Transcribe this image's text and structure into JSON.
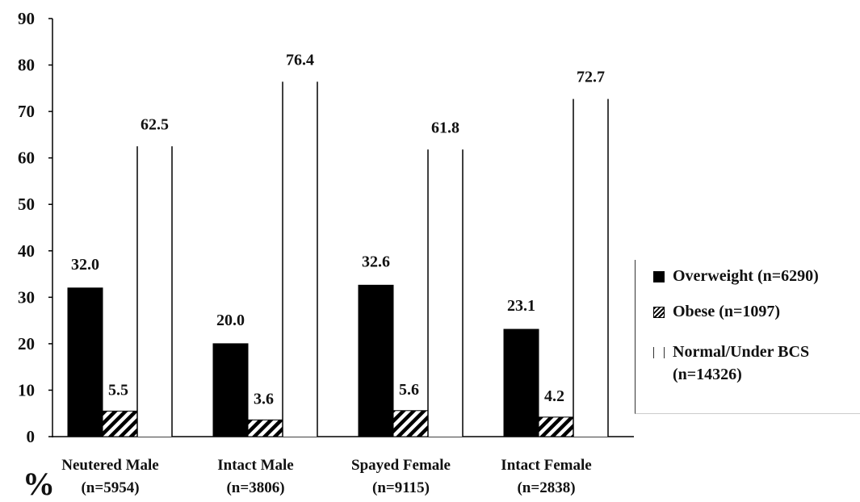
{
  "chart_data": {
    "type": "bar",
    "ylabel": "%",
    "ylim": [
      0,
      90
    ],
    "yticks": [
      0,
      10,
      20,
      30,
      40,
      50,
      60,
      70,
      80,
      90
    ],
    "categories": [
      [
        "Neutered Male",
        "(n=5954)"
      ],
      [
        "Intact Male",
        "(n=3806)"
      ],
      [
        "Spayed Female",
        "(n=9115)"
      ],
      [
        "Intact Female",
        "(n=2838)"
      ]
    ],
    "series": [
      {
        "name": "Overweight (n=6290)",
        "style": "solid",
        "color": "#000000",
        "values": [
          32.0,
          20.0,
          32.6,
          23.1
        ],
        "labels": [
          "32.0",
          "20.0",
          "32.6",
          "23.1"
        ]
      },
      {
        "name": "Obese (n=1097)",
        "style": "hatched",
        "color": "#000000",
        "values": [
          5.5,
          3.6,
          5.6,
          4.2
        ],
        "labels": [
          "5.5",
          "3.6",
          "5.6",
          "4.2"
        ]
      },
      {
        "name": "Normal/Under BCS (n=14326)",
        "style": "white",
        "color": "#ffffff",
        "values": [
          62.5,
          76.4,
          61.8,
          72.7
        ],
        "labels": [
          "62.5",
          "76.4",
          "61.8",
          "72.7"
        ]
      }
    ],
    "legend": {
      "position": "right",
      "items": [
        {
          "lines": [
            "Overweight (n=6290)"
          ]
        },
        {
          "lines": [
            "Obese (n=1097)"
          ]
        },
        {
          "lines": [
            "Normal/Under BCS",
            "(n=14326)"
          ]
        }
      ]
    }
  }
}
